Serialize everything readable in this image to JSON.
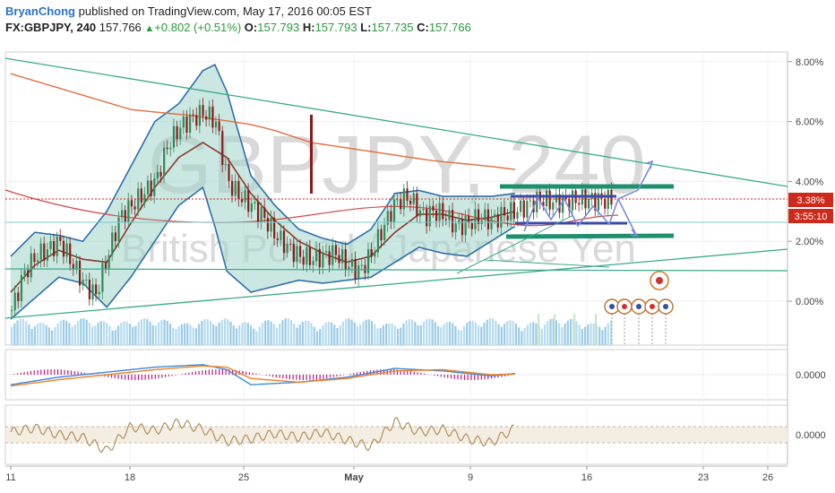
{
  "header": {
    "author": "BryanChong",
    "published": "published on TradingView.com, May 17, 2016 00:05 EST",
    "symbol": "FX:GBPJPY, 240",
    "price": "157.766",
    "change": "+0.802 (+0.51%)",
    "o_label": "O:",
    "o_value": "157.793",
    "h_label": "H:",
    "h_value": "157.793",
    "l_label": "L:",
    "l_value": "157.735",
    "c_label": "C:",
    "c_value": "157.766"
  },
  "watermark": {
    "symbol": "GBPJPY, 240",
    "description": "British Pound / Japanese Yen"
  },
  "colors": {
    "bull": "#2e8b57",
    "bear": "#8b1a1a",
    "band_fill": "#9fd3cb",
    "band_line": "#2e6fa6",
    "sma": "#8b3a2a",
    "ema_long": "#e07040",
    "teal_line": "#3aaa8a",
    "channel": "#1e9070",
    "box_line": "#3a4aa8",
    "red_level": "#cc2a1a",
    "macd": "#3a8ad8",
    "signal": "#f08020",
    "hist": "#c0187a",
    "osc": "#b09060"
  },
  "chart_data": [
    {
      "type": "line",
      "panel": "price",
      "title": "FX:GBPJPY, 240",
      "y_axis": {
        "ticks": [
          "8.00%",
          "6.00%",
          "4.00%",
          "2.00%",
          "0.00%"
        ],
        "ylim": [
          -1.2,
          8.2
        ]
      },
      "x_axis": {
        "ticks": [
          "11",
          "18",
          "25",
          "May",
          "9",
          "16",
          "23",
          "26"
        ]
      },
      "price_labels": [
        {
          "text": "3.38%",
          "value": 3.38,
          "color": "#cc2a1a"
        },
        {
          "text": "3:55:10",
          "value": 2.7,
          "color": "#cc2a1a"
        }
      ],
      "series": [
        {
          "kind": "price",
          "x": [
            0,
            5,
            10,
            15,
            20,
            25,
            30,
            35,
            40,
            45,
            50,
            55,
            60,
            65,
            70,
            75,
            80,
            85,
            90,
            95,
            100,
            105,
            110,
            115,
            120,
            125,
            130,
            135,
            140,
            145,
            150,
            155,
            160,
            165,
            170,
            172,
            175,
            180,
            185,
            190,
            195,
            200,
            205,
            210,
            215,
            220,
            225,
            230,
            235,
            240,
            245,
            250
          ],
          "y": [
            -0.3,
            0.9,
            1.5,
            1.7,
            2.0,
            1.3,
            0.6,
            0.2,
            1.5,
            2.8,
            3.2,
            3.6,
            4.0,
            5.2,
            5.8,
            6.1,
            6.3,
            6.0,
            4.0,
            3.5,
            3.2,
            2.8,
            2.2,
            1.8,
            1.5,
            1.4,
            1.5,
            1.6,
            1.2,
            1.0,
            1.6,
            2.5,
            3.3,
            3.5,
            3.0,
            2.8,
            3.0,
            2.9,
            2.5,
            2.6,
            2.8,
            2.7,
            2.9,
            3.0,
            3.2,
            3.4,
            3.3,
            3.3,
            3.4,
            3.38,
            3.38,
            3.38
          ]
        },
        {
          "kind": "sma",
          "x": [
            0,
            10,
            20,
            30,
            40,
            50,
            60,
            70,
            80,
            90,
            100,
            110,
            120,
            130,
            140,
            150,
            160,
            170,
            180,
            190,
            200,
            210
          ],
          "y": [
            0.3,
            1.2,
            1.7,
            1.4,
            1.3,
            2.6,
            3.8,
            4.8,
            5.3,
            4.8,
            3.6,
            2.7,
            2.0,
            1.6,
            1.3,
            1.5,
            2.3,
            2.9,
            2.9,
            2.7,
            2.8,
            3.0
          ]
        },
        {
          "kind": "upper_band",
          "x": [
            0,
            10,
            20,
            30,
            40,
            50,
            60,
            70,
            80,
            85,
            90,
            100,
            110,
            120,
            130,
            140,
            150,
            160,
            170,
            180,
            190,
            200,
            210
          ],
          "y": [
            1.5,
            2.3,
            2.2,
            2.0,
            3.0,
            4.5,
            6.0,
            6.6,
            7.7,
            7.9,
            7.0,
            4.2,
            3.2,
            2.4,
            2.1,
            1.9,
            2.4,
            3.6,
            3.7,
            3.5,
            3.5,
            3.5,
            3.6
          ]
        },
        {
          "kind": "lower_band",
          "x": [
            0,
            10,
            20,
            30,
            40,
            50,
            60,
            70,
            80,
            85,
            90,
            100,
            110,
            120,
            130,
            140,
            150,
            160,
            170,
            180,
            190,
            200,
            210
          ],
          "y": [
            -0.6,
            0.1,
            0.8,
            0.6,
            -0.2,
            0.8,
            2.0,
            3.2,
            3.8,
            2.5,
            1.0,
            0.3,
            0.5,
            0.7,
            0.6,
            0.7,
            0.8,
            1.3,
            1.8,
            1.6,
            1.5,
            2.0,
            2.5
          ]
        },
        {
          "kind": "ema_long",
          "x": [
            0,
            25,
            50,
            75,
            100,
            110,
            125,
            150,
            175,
            200,
            210
          ],
          "y": [
            7.6,
            7.0,
            6.4,
            6.2,
            5.9,
            5.7,
            5.3,
            5.0,
            4.7,
            4.5,
            4.4
          ]
        }
      ]
    },
    {
      "type": "line",
      "panel": "macd",
      "y_axis": {
        "ticks": [
          "0.0000"
        ]
      },
      "series": [
        {
          "name": "",
          "kind": "macd",
          "x": [
            0,
            20,
            40,
            60,
            80,
            90,
            100,
            120,
            140,
            160,
            180,
            200,
            210
          ],
          "y": [
            -0.8,
            -0.2,
            0.2,
            0.6,
            0.8,
            0.4,
            -0.8,
            -0.6,
            -0.2,
            0.5,
            0.3,
            -0.1,
            0.1
          ]
        },
        {
          "name": "",
          "kind": "signal",
          "x": [
            0,
            20,
            40,
            60,
            80,
            90,
            100,
            120,
            140,
            160,
            180,
            200,
            210
          ],
          "y": [
            -0.9,
            -0.4,
            0.0,
            0.4,
            0.7,
            0.6,
            -0.3,
            -0.6,
            -0.3,
            0.3,
            0.4,
            0.0,
            0.05
          ]
        }
      ]
    },
    {
      "type": "line",
      "panel": "oscillator",
      "y_axis": {
        "ticks": [
          "0.0000"
        ]
      },
      "series": [
        {
          "name": "",
          "kind": "osc",
          "x": [
            0,
            10,
            20,
            30,
            40,
            50,
            60,
            70,
            80,
            90,
            100,
            110,
            120,
            130,
            140,
            150,
            160,
            170,
            180,
            190,
            200,
            210
          ],
          "y": [
            0.2,
            0.5,
            0.0,
            -0.2,
            -1.2,
            0.6,
            0.3,
            0.9,
            0.4,
            -0.5,
            -0.3,
            0.1,
            -0.2,
            0.2,
            -0.4,
            -0.9,
            1.0,
            0.2,
            0.4,
            -0.3,
            -0.6,
            0.5
          ]
        }
      ]
    }
  ]
}
